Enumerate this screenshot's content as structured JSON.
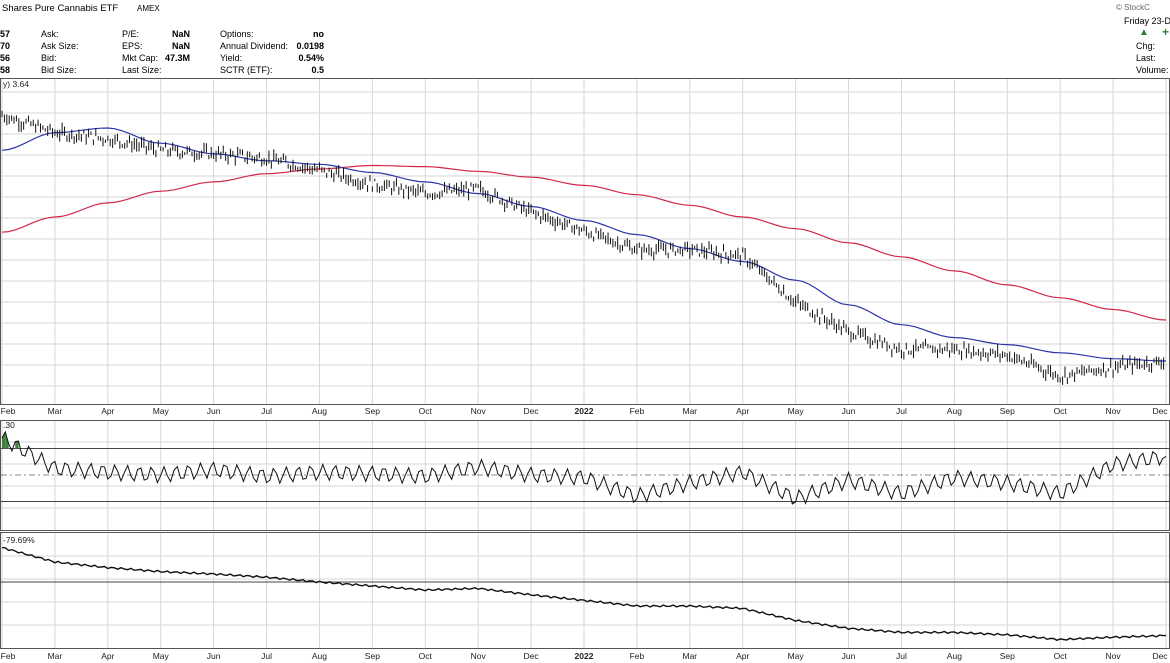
{
  "header": {
    "title": "Shares Pure Cannabis ETF",
    "exchange": "AMEX",
    "watermark": "© StockC",
    "date": "Friday 23-D",
    "left_values": [
      "57",
      "70",
      "56",
      "58"
    ],
    "quotes": [
      {
        "label": "Ask:",
        "value": ""
      },
      {
        "label": "Ask Size:",
        "value": ""
      },
      {
        "label": "Bid:",
        "value": ""
      },
      {
        "label": "Bid Size:",
        "value": ""
      }
    ],
    "fundamentals": [
      {
        "label": "P/E:",
        "value": "NaN"
      },
      {
        "label": "EPS:",
        "value": "NaN"
      },
      {
        "label": "Mkt Cap:",
        "value": "47.3M"
      },
      {
        "label": "Last Size:",
        "value": ""
      }
    ],
    "other": [
      {
        "label": "Options:",
        "value": "no"
      },
      {
        "label": "Annual Dividend:",
        "value": "0.0198"
      },
      {
        "label": "Yield:",
        "value": "0.54%"
      },
      {
        "label": "SCTR (ETF):",
        "value": "0.5"
      }
    ],
    "right_labels": [
      "Chg:",
      "Last:",
      "Volume:"
    ],
    "arrow_up": "▲",
    "plus": "+"
  },
  "panels": {
    "price_label": "y) 3.64",
    "rsi_label": ".30",
    "perf_label": "-79.69%"
  },
  "colors": {
    "price": "#111111",
    "ma50": "#2b35a8",
    "ma200": "#d1284a",
    "rsi_up": "#3f7f3f",
    "rsi_down": "#8b3a3a",
    "grid": "#d6d6d6",
    "frame": "#555555"
  },
  "chart_data": [
    {
      "type": "line",
      "title": "Shares Pure Cannabis ETF",
      "x": [
        "Feb",
        "Mar",
        "Apr",
        "May",
        "Jun",
        "Jul",
        "Aug",
        "Sep",
        "Oct",
        "Nov",
        "Dec",
        "2022",
        "Feb",
        "Mar",
        "Apr",
        "May",
        "Jun",
        "Jul",
        "Aug",
        "Sep",
        "Oct",
        "Nov",
        "Dec"
      ],
      "series": [
        {
          "values": [
            3.45,
            3.3,
            3.25,
            3.15,
            3.12,
            3.08,
            2.98,
            2.86,
            2.78,
            2.82,
            2.62,
            2.46,
            2.3,
            2.3,
            2.25,
            1.85,
            1.6,
            1.45,
            1.45,
            1.4,
            1.22,
            1.3,
            1.35
          ]
        },
        {
          "values": [
            3.15,
            3.3,
            3.34,
            3.21,
            3.12,
            3.06,
            3.03,
            2.96,
            2.88,
            2.78,
            2.67,
            2.55,
            2.43,
            2.31,
            2.2,
            2.04,
            1.83,
            1.66,
            1.55,
            1.49,
            1.42,
            1.37,
            1.35
          ]
        },
        {
          "values": [
            2.45,
            2.58,
            2.7,
            2.8,
            2.88,
            2.95,
            2.99,
            3.02,
            3.01,
            2.97,
            2.92,
            2.85,
            2.77,
            2.68,
            2.58,
            2.48,
            2.36,
            2.24,
            2.12,
            2.0,
            1.89,
            1.79,
            1.7
          ]
        }
      ],
      "legend": "none"
    },
    {
      "type": "line",
      "x": [
        "Feb",
        "Mar",
        "Apr",
        "May",
        "Jun",
        "Jul",
        "Aug",
        "Sep",
        "Oct",
        "Nov",
        "Dec",
        "2022",
        "Feb",
        "Mar",
        "Apr",
        "May",
        "Jun",
        "Jul",
        "Aug",
        "Sep",
        "Oct",
        "Nov",
        "Dec"
      ],
      "series": [
        {
          "values": [
            78,
            55,
            52,
            50,
            54,
            49,
            52,
            51,
            49,
            56,
            50,
            48,
            34,
            44,
            52,
            32,
            46,
            36,
            48,
            44,
            36,
            58,
            64
          ]
        }
      ],
      "reference_lines": [
        70,
        50,
        30
      ]
    },
    {
      "type": "line",
      "x": [
        "Feb",
        "Mar",
        "Apr",
        "May",
        "Jun",
        "Jul",
        "Aug",
        "Sep",
        "Oct",
        "Nov",
        "Dec",
        "2022",
        "Feb",
        "Mar",
        "Apr",
        "May",
        "Jun",
        "Jul",
        "Aug",
        "Sep",
        "Oct",
        "Nov",
        "Dec"
      ],
      "series": [
        {
          "values": [
            -79.7,
            -81.5,
            -82.2,
            -82.7,
            -83.0,
            -83.4,
            -84.0,
            -84.5,
            -85.0,
            -84.8,
            -85.6,
            -86.3,
            -87.0,
            -87.0,
            -87.3,
            -88.8,
            -89.8,
            -90.3,
            -90.3,
            -90.6,
            -91.2,
            -90.9,
            -90.7
          ]
        }
      ],
      "reference_lines": [
        -84.0
      ]
    }
  ],
  "x_labels": [
    {
      "label": "Feb",
      "bold": false
    },
    {
      "label": "Mar",
      "bold": false
    },
    {
      "label": "Apr",
      "bold": false
    },
    {
      "label": "May",
      "bold": false
    },
    {
      "label": "Jun",
      "bold": false
    },
    {
      "label": "Jul",
      "bold": false
    },
    {
      "label": "Aug",
      "bold": false
    },
    {
      "label": "Sep",
      "bold": false
    },
    {
      "label": "Oct",
      "bold": false
    },
    {
      "label": "Nov",
      "bold": false
    },
    {
      "label": "Dec",
      "bold": false
    },
    {
      "label": "2022",
      "bold": true
    },
    {
      "label": "Feb",
      "bold": false
    },
    {
      "label": "Mar",
      "bold": false
    },
    {
      "label": "Apr",
      "bold": false
    },
    {
      "label": "May",
      "bold": false
    },
    {
      "label": "Jun",
      "bold": false
    },
    {
      "label": "Jul",
      "bold": false
    },
    {
      "label": "Aug",
      "bold": false
    },
    {
      "label": "Sep",
      "bold": false
    },
    {
      "label": "Oct",
      "bold": false
    },
    {
      "label": "Nov",
      "bold": false
    },
    {
      "label": "Dec",
      "bold": false
    }
  ]
}
